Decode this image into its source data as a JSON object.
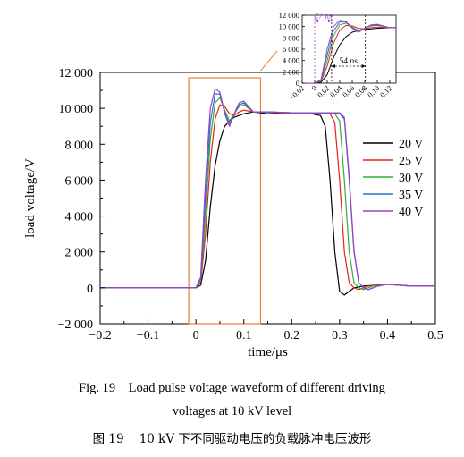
{
  "chart_data": [
    {
      "type": "line",
      "title": "",
      "xlabel": "time/μs",
      "ylabel": "load voltage/V",
      "xlim": [
        -0.2,
        0.5
      ],
      "ylim": [
        -2000,
        12000
      ],
      "x_ticks": [
        -0.2,
        -0.1,
        0,
        0.1,
        0.2,
        0.3,
        0.4,
        0.5
      ],
      "x_tick_labels": [
        "−0.2",
        "−0.1",
        "0",
        "0.1",
        "0.2",
        "0.3",
        "0.4",
        "0.5"
      ],
      "y_ticks": [
        -2000,
        0,
        2000,
        4000,
        6000,
        8000,
        10000,
        12000
      ],
      "y_tick_labels": [
        "−2 000",
        "0",
        "2 000",
        "4 000",
        "6 000",
        "8 000",
        "10 000",
        "12 000"
      ],
      "grid": false,
      "legend_position": "right",
      "highlight_box": {
        "x": [
          -0.015,
          0.135
        ],
        "y": [
          -2000,
          11700
        ],
        "color": "#e8803c"
      },
      "series": [
        {
          "name": "20 V",
          "color": "#000000",
          "x": [
            -0.2,
            0.0,
            0.01,
            0.02,
            0.03,
            0.04,
            0.05,
            0.06,
            0.07,
            0.08,
            0.09,
            0.1,
            0.12,
            0.15,
            0.2,
            0.24,
            0.26,
            0.27,
            0.28,
            0.29,
            0.3,
            0.31,
            0.32,
            0.33,
            0.35,
            0.4,
            0.45,
            0.5
          ],
          "y": [
            0,
            0,
            150,
            1500,
            4500,
            6800,
            8200,
            9000,
            9300,
            9500,
            9600,
            9700,
            9800,
            9700,
            9750,
            9700,
            9600,
            9000,
            6000,
            2000,
            -200,
            -400,
            -200,
            0,
            100,
            200,
            100,
            100
          ]
        },
        {
          "name": "25 V",
          "color": "#e8201c",
          "x": [
            -0.2,
            0.0,
            0.01,
            0.02,
            0.03,
            0.04,
            0.05,
            0.06,
            0.07,
            0.08,
            0.09,
            0.1,
            0.12,
            0.15,
            0.2,
            0.26,
            0.28,
            0.29,
            0.3,
            0.31,
            0.32,
            0.33,
            0.34,
            0.36,
            0.4,
            0.45,
            0.5
          ],
          "y": [
            0,
            0,
            300,
            3000,
            7000,
            9400,
            10200,
            10100,
            9700,
            9600,
            9800,
            9900,
            9800,
            9800,
            9700,
            9700,
            9700,
            9200,
            6000,
            2000,
            300,
            0,
            -100,
            100,
            200,
            100,
            100
          ]
        },
        {
          "name": "30 V",
          "color": "#2fb030",
          "x": [
            -0.2,
            0.0,
            0.01,
            0.02,
            0.03,
            0.04,
            0.05,
            0.06,
            0.07,
            0.08,
            0.09,
            0.1,
            0.12,
            0.15,
            0.2,
            0.27,
            0.29,
            0.3,
            0.31,
            0.32,
            0.33,
            0.34,
            0.35,
            0.37,
            0.4,
            0.45,
            0.5
          ],
          "y": [
            0,
            0,
            400,
            4000,
            8300,
            10300,
            10600,
            9900,
            9300,
            9700,
            10100,
            10200,
            9800,
            9800,
            9750,
            9700,
            9700,
            9300,
            6000,
            2000,
            300,
            0,
            -100,
            100,
            200,
            100,
            100
          ]
        },
        {
          "name": "35 V",
          "color": "#2e6fcc",
          "x": [
            -0.2,
            0.0,
            0.01,
            0.02,
            0.03,
            0.04,
            0.05,
            0.06,
            0.07,
            0.08,
            0.09,
            0.1,
            0.12,
            0.15,
            0.2,
            0.28,
            0.3,
            0.31,
            0.32,
            0.33,
            0.34,
            0.35,
            0.36,
            0.38,
            0.4,
            0.45,
            0.5
          ],
          "y": [
            0,
            0,
            500,
            5000,
            9200,
            10800,
            10800,
            9800,
            9100,
            9700,
            10200,
            10300,
            9800,
            9800,
            9750,
            9750,
            9700,
            9400,
            6000,
            2000,
            300,
            0,
            -100,
            100,
            200,
            100,
            100
          ]
        },
        {
          "name": "40 V",
          "color": "#9a40c8",
          "x": [
            -0.2,
            0.0,
            0.01,
            0.02,
            0.03,
            0.04,
            0.05,
            0.06,
            0.07,
            0.08,
            0.09,
            0.1,
            0.12,
            0.15,
            0.2,
            0.28,
            0.3,
            0.31,
            0.32,
            0.33,
            0.34,
            0.35,
            0.36,
            0.38,
            0.4,
            0.45,
            0.5
          ],
          "y": [
            0,
            0,
            600,
            6000,
            10000,
            11100,
            10900,
            9700,
            9000,
            9700,
            10300,
            10400,
            9800,
            9800,
            9750,
            9750,
            9750,
            9500,
            6200,
            2100,
            300,
            0,
            -100,
            100,
            200,
            100,
            100
          ]
        }
      ]
    },
    {
      "type": "line",
      "title": "",
      "xlabel": "",
      "ylabel": "",
      "xlim": [
        -0.02,
        0.13
      ],
      "ylim": [
        0,
        12000
      ],
      "x_ticks": [
        -0.02,
        0,
        0.02,
        0.04,
        0.06,
        0.08,
        0.1,
        0.12
      ],
      "x_tick_labels": [
        "−0.02",
        "0",
        "0.02",
        "0.04",
        "0.06",
        "0.08",
        "0.10",
        "0.12"
      ],
      "y_ticks": [
        0,
        2000,
        4000,
        6000,
        8000,
        10000,
        12000
      ],
      "y_tick_labels": [
        "0",
        "2 000",
        "4 000",
        "6 000",
        "8 000",
        "10 000",
        "12 000"
      ],
      "grid": false,
      "annotations": [
        {
          "text": "27 ns",
          "color": "#9a40c8",
          "x": [
            0.0,
            0.027
          ],
          "y": 11000
        },
        {
          "text": "54 ns",
          "color": "#000000",
          "x": [
            0.027,
            0.081
          ],
          "y": 3000
        }
      ],
      "dashed_lines": [
        {
          "x": 0.0,
          "color": "#9a40c8"
        },
        {
          "x": 0.027,
          "color": "#000000"
        },
        {
          "x": 0.081,
          "color": "#000000"
        }
      ]
    }
  ],
  "captions": {
    "en_line1": "Fig. 19    Load pulse voltage waveform of different driving",
    "en_line2": "voltages at 10 kV level",
    "zh": "图 19    10 kV 下不同驱动电压的负载脉冲电压波形"
  }
}
